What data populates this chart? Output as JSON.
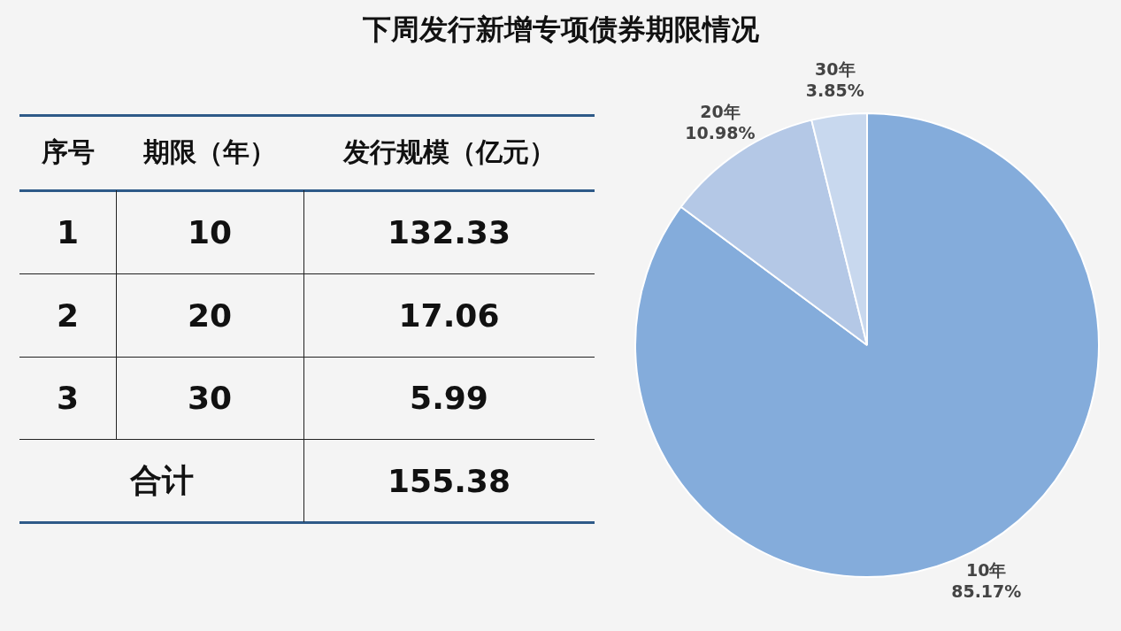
{
  "chart_data": [
    {
      "type": "other",
      "categories": [
        "序号",
        "期限（年）",
        "发行规模（亿元）"
      ],
      "cell_labels": [
        [
          "1",
          "10",
          "132.33"
        ],
        [
          "2",
          "20",
          "17.06"
        ],
        [
          "3",
          "30",
          "5.99"
        ],
        [
          "合计",
          null,
          "155.38"
        ]
      ]
    },
    {
      "type": "pie",
      "title": "下周发行新增专项债券期限情况",
      "categories": [
        "10年",
        "20年",
        "30年"
      ],
      "values": [
        85.17,
        10.98,
        3.85
      ],
      "colors": [
        "#84acdb",
        "#b4c8e6",
        "#c8d8ee"
      ],
      "value_labels": [
        "85.17%",
        "10.98%",
        "3.85%"
      ],
      "legend": false
    }
  ]
}
